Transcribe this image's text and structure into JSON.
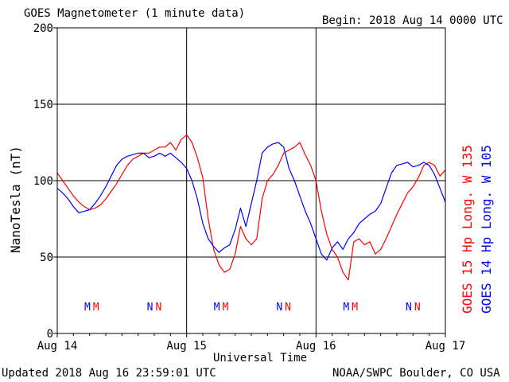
{
  "header": {
    "title": "GOES Magnetometer (1 minute data)",
    "begin": "Begin:  2018 Aug 14 0000 UTC"
  },
  "footer": {
    "updated": "Updated 2018 Aug 16 23:59:01 UTC",
    "credit": "NOAA/SWPC Boulder, CO USA"
  },
  "colors": {
    "goes15": "#ff0000",
    "goes14": "#0000ff",
    "axis": "#000000"
  },
  "chart_data": {
    "type": "line",
    "title": "GOES Magnetometer (1 minute data)",
    "xlabel": "Universal Time",
    "ylabel": "NanoTesla (nT)",
    "xlim": [
      0,
      72
    ],
    "ylim": [
      0,
      200
    ],
    "x_unit": "hours since 2018 Aug 14 0000 UTC",
    "yticks": [
      0,
      50,
      100,
      150,
      200
    ],
    "ytick_labels": [
      "0",
      "50",
      "100",
      "150",
      "200"
    ],
    "xticks": [
      0,
      24,
      48,
      72
    ],
    "xtick_labels": [
      "Aug 14",
      "Aug 15",
      "Aug 16",
      "Aug 17"
    ],
    "grid": true,
    "legend_position": "right, vertical",
    "series": [
      {
        "name": "GOES 15 Hp  Long. W 135",
        "color": "#ff0000",
        "x": [
          0,
          1,
          2,
          3,
          4,
          5,
          6,
          7,
          8,
          9,
          10,
          11,
          12,
          13,
          14,
          15,
          16,
          17,
          18,
          19,
          20,
          21,
          22,
          23,
          24,
          25,
          26,
          27,
          28,
          29,
          30,
          31,
          32,
          33,
          34,
          35,
          36,
          37,
          38,
          39,
          40,
          41,
          42,
          43,
          44,
          45,
          46,
          47,
          48,
          49,
          50,
          51,
          52,
          53,
          54,
          55,
          56,
          57,
          58,
          59,
          60,
          61,
          62,
          63,
          64,
          65,
          66,
          67,
          68,
          69,
          70,
          71,
          72
        ],
        "y": [
          105,
          100,
          95,
          90,
          86,
          83,
          81,
          82,
          84,
          88,
          93,
          98,
          104,
          110,
          114,
          116,
          118,
          118,
          120,
          122,
          122,
          125,
          120,
          127,
          130,
          125,
          115,
          102,
          75,
          55,
          45,
          40,
          42,
          52,
          70,
          62,
          58,
          62,
          88,
          100,
          104,
          110,
          118,
          120,
          122,
          125,
          117,
          110,
          100,
          80,
          65,
          55,
          50,
          40,
          35,
          60,
          62,
          58,
          60,
          52,
          55,
          62,
          70,
          78,
          85,
          92,
          96,
          102,
          110,
          112,
          110,
          103,
          107
        ]
      },
      {
        "name": "GOES 14 Hp  Long. W 105",
        "color": "#0000ff",
        "x": [
          0,
          1,
          2,
          3,
          4,
          5,
          6,
          7,
          8,
          9,
          10,
          11,
          12,
          13,
          14,
          15,
          16,
          17,
          18,
          19,
          20,
          21,
          22,
          23,
          24,
          25,
          26,
          27,
          28,
          29,
          30,
          31,
          32,
          33,
          34,
          35,
          36,
          37,
          38,
          39,
          40,
          41,
          42,
          43,
          44,
          45,
          46,
          47,
          48,
          49,
          50,
          51,
          52,
          53,
          54,
          55,
          56,
          57,
          58,
          59,
          60,
          61,
          62,
          63,
          64,
          65,
          66,
          67,
          68,
          69,
          70,
          71,
          72
        ],
        "y": [
          95,
          92,
          88,
          83,
          79,
          80,
          81,
          85,
          90,
          96,
          103,
          110,
          114,
          116,
          117,
          118,
          118,
          115,
          116,
          118,
          116,
          118,
          115,
          112,
          108,
          100,
          88,
          72,
          62,
          57,
          53,
          56,
          58,
          68,
          82,
          70,
          85,
          100,
          118,
          122,
          124,
          125,
          122,
          108,
          100,
          90,
          80,
          72,
          62,
          52,
          48,
          56,
          60,
          55,
          62,
          66,
          72,
          75,
          78,
          80,
          85,
          95,
          105,
          110,
          111,
          112,
          109,
          110,
          112,
          110,
          104,
          95,
          86
        ]
      }
    ],
    "markers": [
      {
        "label": "M",
        "x": 5.6,
        "color": "#0000ff"
      },
      {
        "label": "M",
        "x": 7.2,
        "color": "#ff0000"
      },
      {
        "label": "N",
        "x": 17.2,
        "color": "#0000ff"
      },
      {
        "label": "N",
        "x": 18.8,
        "color": "#ff0000"
      },
      {
        "label": "M",
        "x": 29.6,
        "color": "#0000ff"
      },
      {
        "label": "M",
        "x": 31.2,
        "color": "#ff0000"
      },
      {
        "label": "N",
        "x": 41.2,
        "color": "#0000ff"
      },
      {
        "label": "N",
        "x": 42.8,
        "color": "#ff0000"
      },
      {
        "label": "M",
        "x": 53.6,
        "color": "#0000ff"
      },
      {
        "label": "M",
        "x": 55.2,
        "color": "#ff0000"
      },
      {
        "label": "N",
        "x": 65.2,
        "color": "#0000ff"
      },
      {
        "label": "N",
        "x": 66.8,
        "color": "#ff0000"
      }
    ]
  }
}
